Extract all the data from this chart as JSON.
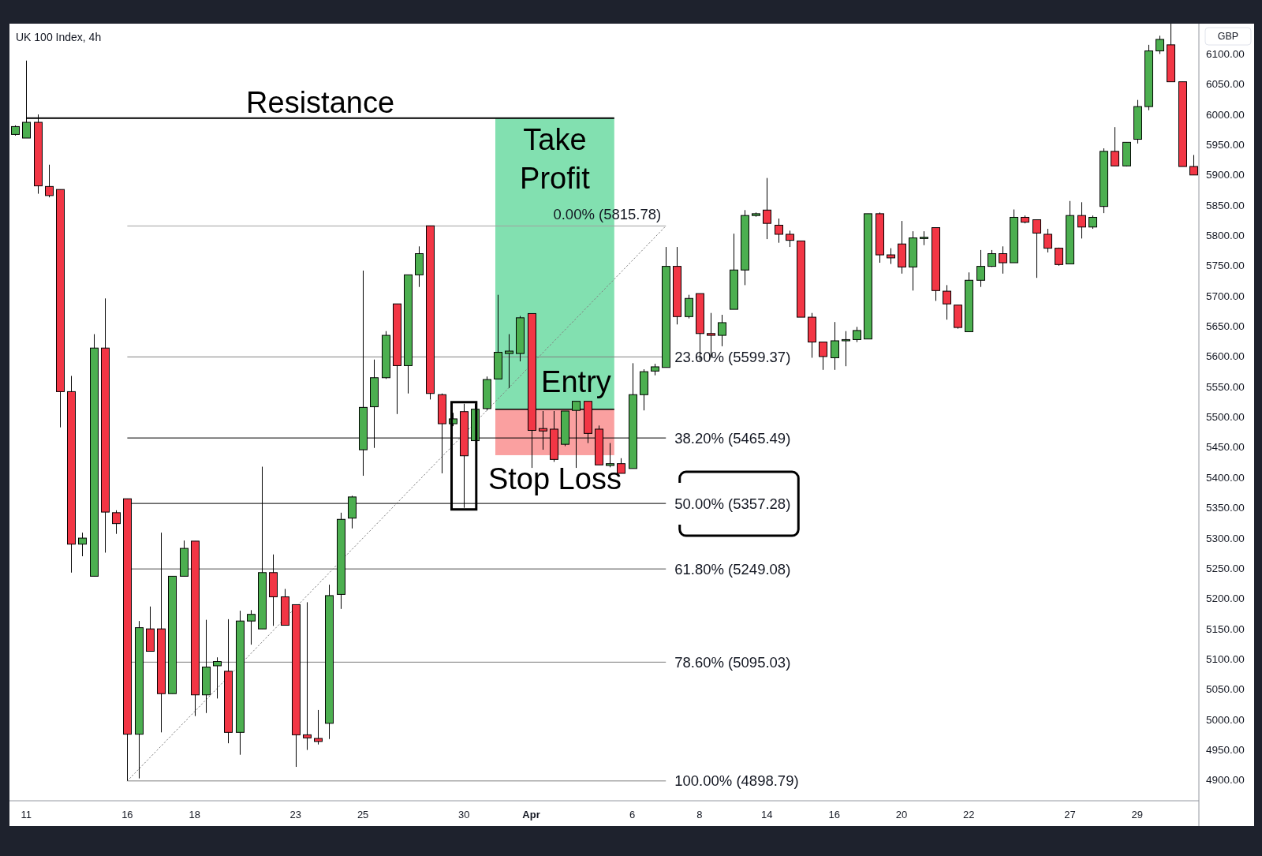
{
  "chart_data": {
    "type": "candlestick",
    "title": "UK 100 Index, 4h",
    "ylabel": "GBP",
    "categories": [
      null,
      "11",
      null,
      null,
      null,
      null,
      null,
      null,
      null,
      null,
      "16",
      null,
      null,
      null,
      null,
      null,
      "18",
      null,
      null,
      null,
      null,
      null,
      null,
      null,
      null,
      "23",
      null,
      null,
      null,
      null,
      null,
      "25",
      null,
      null,
      null,
      null,
      null,
      null,
      null,
      null,
      "30",
      null,
      null,
      null,
      null,
      null,
      "Apr",
      null,
      null,
      null,
      null,
      null,
      null,
      null,
      null,
      "6",
      null,
      null,
      null,
      null,
      null,
      "8",
      null,
      null,
      null,
      null,
      null,
      "14",
      null,
      null,
      null,
      null,
      null,
      "16",
      null,
      null,
      null,
      null,
      null,
      "20",
      null,
      null,
      null,
      null,
      null,
      "22",
      null,
      null,
      null,
      null,
      null,
      null,
      null,
      null,
      "27",
      null,
      null,
      null,
      null,
      null,
      "29",
      null,
      null,
      null,
      null,
      null
    ],
    "ohlc": [
      [
        5967,
        5982,
        5965,
        5980
      ],
      [
        5961,
        6089,
        5961,
        5987
      ],
      [
        5987,
        6000,
        5869,
        5882
      ],
      [
        5881,
        5917,
        5863,
        5866
      ],
      [
        5876,
        5876,
        5483,
        5542
      ],
      [
        5542,
        5568,
        5243,
        5290
      ],
      [
        5290,
        5309,
        5270,
        5300
      ],
      [
        5237,
        5637,
        5237,
        5614
      ],
      [
        5614,
        5696,
        5276,
        5343
      ],
      [
        5342,
        5346,
        5307,
        5324
      ],
      [
        5365,
        5365,
        4899,
        4976
      ],
      [
        4976,
        5163,
        4903,
        5152
      ],
      [
        5150,
        5187,
        5113,
        5113
      ],
      [
        5150,
        5309,
        4979,
        5043
      ],
      [
        5043,
        5237,
        5043,
        5237
      ],
      [
        5237,
        5296,
        5237,
        5283
      ],
      [
        5295,
        5295,
        5006,
        5041
      ],
      [
        5041,
        5165,
        5011,
        5087
      ],
      [
        5089,
        5103,
        5035,
        5096
      ],
      [
        5080,
        5166,
        4961,
        4979
      ],
      [
        4979,
        5180,
        4942,
        5163
      ],
      [
        5163,
        5181,
        5124,
        5174
      ],
      [
        5150,
        5418,
        5150,
        5243
      ],
      [
        5243,
        5273,
        5155,
        5203
      ],
      [
        5203,
        5216,
        5156,
        5156
      ],
      [
        5190,
        5190,
        4922,
        4975
      ],
      [
        4975,
        5194,
        4950,
        4970
      ],
      [
        4969,
        5016,
        4959,
        4964
      ],
      [
        4994,
        5223,
        4968,
        5205
      ],
      [
        5207,
        5342,
        5183,
        5331
      ],
      [
        5333,
        5370,
        5316,
        5368
      ],
      [
        5446,
        5742,
        5403,
        5516
      ],
      [
        5517,
        5595,
        5449,
        5565
      ],
      [
        5565,
        5642,
        5563,
        5635
      ],
      [
        5687,
        5687,
        5505,
        5585
      ],
      [
        5585,
        5735,
        5539,
        5735
      ],
      [
        5735,
        5782,
        5715,
        5770
      ],
      [
        5816,
        5816,
        5529,
        5539
      ],
      [
        5537,
        5539,
        5407,
        5489
      ],
      [
        5489,
        5507,
        5485,
        5497
      ],
      [
        5509,
        5522,
        5350,
        5436
      ],
      [
        5461,
        5522,
        5461,
        5513
      ],
      [
        5514,
        5567,
        5511,
        5562
      ],
      [
        5563,
        5702,
        5563,
        5607
      ],
      [
        5605,
        5637,
        5548,
        5609
      ],
      [
        5605,
        5667,
        5592,
        5664
      ],
      [
        5671,
        5671,
        5416,
        5478
      ],
      [
        5481,
        5510,
        5446,
        5477
      ],
      [
        5480,
        5510,
        5426,
        5430
      ],
      [
        5455,
        5510,
        5452,
        5510
      ],
      [
        5511,
        5526,
        5416,
        5526
      ],
      [
        5526,
        5526,
        5457,
        5473
      ],
      [
        5480,
        5486,
        5421,
        5421
      ],
      [
        5420,
        5457,
        5417,
        5423
      ],
      [
        5423,
        5432,
        5407,
        5407
      ],
      [
        5415,
        5589,
        5415,
        5537
      ],
      [
        5537,
        5579,
        5511,
        5575
      ],
      [
        5576,
        5588,
        5569,
        5583
      ],
      [
        5582,
        5781,
        5582,
        5749
      ],
      [
        5749,
        5781,
        5653,
        5666
      ],
      [
        5666,
        5702,
        5663,
        5696
      ],
      [
        5704,
        5704,
        5594,
        5638
      ],
      [
        5638,
        5672,
        5598,
        5635
      ],
      [
        5635,
        5669,
        5617,
        5656
      ],
      [
        5678,
        5803,
        5678,
        5743
      ],
      [
        5743,
        5842,
        5718,
        5833
      ],
      [
        5833,
        5838,
        5831,
        5836
      ],
      [
        5842,
        5895,
        5794,
        5820
      ],
      [
        5817,
        5828,
        5788,
        5802
      ],
      [
        5802,
        5808,
        5781,
        5792
      ],
      [
        5791,
        5791,
        5665,
        5665
      ],
      [
        5665,
        5672,
        5598,
        5624
      ],
      [
        5624,
        5624,
        5578,
        5600
      ],
      [
        5598,
        5657,
        5578,
        5626
      ],
      [
        5626,
        5642,
        5584,
        5628
      ],
      [
        5628,
        5649,
        5624,
        5643
      ],
      [
        5629,
        5836,
        5629,
        5836
      ],
      [
        5836,
        5838,
        5755,
        5768
      ],
      [
        5768,
        5779,
        5753,
        5763
      ],
      [
        5786,
        5824,
        5737,
        5748
      ],
      [
        5748,
        5807,
        5709,
        5796
      ],
      [
        5795,
        5807,
        5784,
        5797
      ],
      [
        5813,
        5813,
        5692,
        5709
      ],
      [
        5708,
        5718,
        5661,
        5687
      ],
      [
        5685,
        5685,
        5646,
        5648
      ],
      [
        5641,
        5739,
        5641,
        5726
      ],
      [
        5726,
        5776,
        5715,
        5749
      ],
      [
        5749,
        5776,
        5748,
        5770
      ],
      [
        5770,
        5782,
        5737,
        5755
      ],
      [
        5755,
        5843,
        5755,
        5830
      ],
      [
        5830,
        5833,
        5820,
        5822
      ],
      [
        5826,
        5826,
        5730,
        5804
      ],
      [
        5802,
        5811,
        5772,
        5779
      ],
      [
        5779,
        5780,
        5750,
        5752
      ],
      [
        5753,
        5857,
        5753,
        5833
      ],
      [
        5833,
        5855,
        5795,
        5814
      ],
      [
        5814,
        5833,
        5811,
        5830
      ],
      [
        5848,
        5944,
        5837,
        5939
      ],
      [
        5939,
        5979,
        5915,
        5915
      ],
      [
        5915,
        5954,
        5914,
        5954
      ],
      [
        5959,
        6024,
        5952,
        6013
      ],
      [
        6013,
        6115,
        6007,
        6105
      ],
      [
        6105,
        6130,
        6100,
        6124
      ],
      [
        6115,
        6150,
        6054,
        6054
      ],
      [
        6054,
        6054,
        5914,
        5914
      ],
      [
        5914,
        5933,
        5900,
        5900
      ]
    ],
    "colors": [
      "#4caf50",
      "#4caf50",
      "#f23645",
      "#f23645",
      "#f23645",
      "#f23645",
      "#4caf50",
      "#4caf50",
      "#f23645",
      "#f23645",
      "#f23645",
      "#4caf50",
      "#f23645",
      "#f23645",
      "#4caf50",
      "#4caf50",
      "#f23645",
      "#4caf50",
      "#4caf50",
      "#f23645",
      "#4caf50",
      "#4caf50",
      "#4caf50",
      "#f23645",
      "#f23645",
      "#f23645",
      "#f23645",
      "#f23645",
      "#4caf50",
      "#4caf50",
      "#4caf50",
      "#4caf50",
      "#4caf50",
      "#4caf50",
      "#f23645",
      "#4caf50",
      "#4caf50",
      "#f23645",
      "#f23645",
      "#4caf50",
      "#f23645",
      "#4caf50",
      "#4caf50",
      "#4caf50",
      "#4caf50",
      "#4caf50",
      "#f23645",
      "#f23645",
      "#f23645",
      "#4caf50",
      "#4caf50",
      "#f23645",
      "#f23645",
      "#4caf50",
      "#f23645",
      "#4caf50",
      "#4caf50",
      "#4caf50",
      "#4caf50",
      "#f23645",
      "#4caf50",
      "#f23645",
      "#f23645",
      "#4caf50",
      "#4caf50",
      "#4caf50",
      "#4caf50",
      "#f23645",
      "#f23645",
      "#f23645",
      "#f23645",
      "#f23645",
      "#f23645",
      "#4caf50",
      "#4caf50",
      "#4caf50",
      "#4caf50",
      "#f23645",
      "#f23645",
      "#f23645",
      "#4caf50",
      "#4caf50",
      "#f23645",
      "#f23645",
      "#f23645",
      "#4caf50",
      "#4caf50",
      "#4caf50",
      "#f23645",
      "#4caf50",
      "#f23645",
      "#f23645",
      "#f23645",
      "#f23645",
      "#4caf50",
      "#f23645",
      "#4caf50",
      "#4caf50",
      "#f23645",
      "#4caf50",
      "#4caf50",
      "#4caf50",
      "#4caf50",
      "#f23645",
      "#f23645",
      "#f23645"
    ],
    "series": [
      {
        "type": "line",
        "color": "#808080",
        "line_style": "dotted",
        "values": [
          null,
          null,
          null,
          null,
          null,
          null,
          null,
          null,
          null,
          null,
          4898.79,
          null,
          null,
          null,
          null,
          null,
          null,
          null,
          null,
          null,
          null,
          null,
          null,
          null,
          null,
          null,
          null,
          null,
          null,
          null,
          null,
          null,
          null,
          null,
          null,
          null,
          null,
          null,
          null,
          null,
          null,
          null,
          null,
          null,
          null,
          null,
          null,
          null,
          null,
          null,
          null,
          null,
          null,
          null,
          null,
          null,
          null,
          null,
          5815.78,
          null,
          null,
          null,
          null,
          null,
          null,
          null,
          null,
          null,
          null,
          null,
          null,
          null,
          null,
          null,
          null,
          null,
          null,
          null,
          null,
          null,
          null,
          null,
          null,
          null,
          null,
          null,
          null,
          null,
          null,
          null,
          null,
          null,
          null,
          null,
          null,
          null,
          null,
          null,
          null,
          null,
          null,
          null,
          null,
          null,
          null,
          null
        ]
      }
    ],
    "ref_lines": [
      {
        "axis": "y",
        "value": 5994,
        "label": "Resistance",
        "color": "#000000"
      },
      {
        "axis": "y",
        "value": 5513,
        "label": "Entry",
        "color": "#000000"
      },
      {
        "axis": "y",
        "value": 5815.78,
        "label": "0.00% (5815.78)",
        "color": "#a0a0a0"
      },
      {
        "axis": "y",
        "value": 5599.37,
        "label": "23.60% (5599.37)",
        "color": "#808080"
      },
      {
        "axis": "y",
        "value": 5465.49,
        "label": "38.20% (5465.49)",
        "color": "#000000"
      },
      {
        "axis": "y",
        "value": 5357.28,
        "label": "50.00% (5357.28)",
        "color": "#000000"
      },
      {
        "axis": "y",
        "value": 5249.08,
        "label": "61.80% (5249.08)",
        "color": "#505050"
      },
      {
        "axis": "y",
        "value": 5095.03,
        "label": "78.60% (5095.03)",
        "color": "#808080"
      },
      {
        "axis": "y",
        "value": 4898.79,
        "label": "100.00% (4898.79)",
        "color": "#808080"
      }
    ],
    "bands": [
      {
        "axis": "y",
        "from": 5513,
        "to": 5994,
        "label": "Take Profit",
        "color": "#82e0b0"
      },
      {
        "axis": "y",
        "from": 5437,
        "to": 5513,
        "label": "Stop Loss",
        "color": "#faa0a0"
      }
    ],
    "ylim": [
      4866,
      6150
    ],
    "yticks": [
      {
        "value": 4900,
        "label": "4900.00"
      },
      {
        "value": 4950,
        "label": "4950.00"
      },
      {
        "value": 5000,
        "label": "5000.00"
      },
      {
        "value": 5050,
        "label": "5050.00"
      },
      {
        "value": 5100,
        "label": "5100.00"
      },
      {
        "value": 5150,
        "label": "5150.00"
      },
      {
        "value": 5200,
        "label": "5200.00"
      },
      {
        "value": 5250,
        "label": "5250.00"
      },
      {
        "value": 5300,
        "label": "5300.00"
      },
      {
        "value": 5350,
        "label": "5350.00"
      },
      {
        "value": 5400,
        "label": "5400.00"
      },
      {
        "value": 5450,
        "label": "5450.00"
      },
      {
        "value": 5500,
        "label": "5500.00"
      },
      {
        "value": 5550,
        "label": "5550.00"
      },
      {
        "value": 5600,
        "label": "5600.00"
      },
      {
        "value": 5650,
        "label": "5650.00"
      },
      {
        "value": 5700,
        "label": "5700.00"
      },
      {
        "value": 5750,
        "label": "5750.00"
      },
      {
        "value": 5800,
        "label": "5800.00"
      },
      {
        "value": 5850,
        "label": "5850.00"
      },
      {
        "value": 5900,
        "label": "5900.00"
      },
      {
        "value": 5950,
        "label": "5950.00"
      },
      {
        "value": 6000,
        "label": "6000.00"
      },
      {
        "value": 6050,
        "label": "6050.00"
      },
      {
        "value": 6100,
        "label": "6100.00"
      }
    ]
  }
}
